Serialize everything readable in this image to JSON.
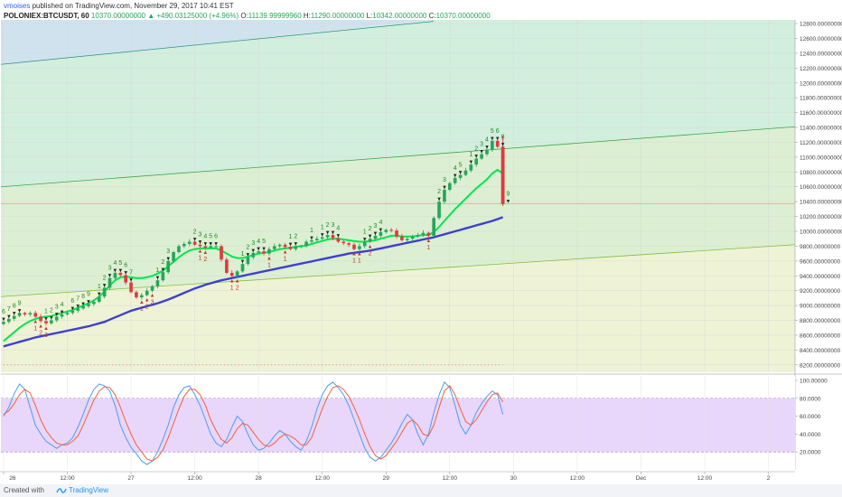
{
  "header": {
    "user": "vmoises",
    "published_text": "published on TradingView.com, November 29, 2017 10:41 EST",
    "symbol": "POLONIEX:BTCUSDT, 60",
    "last_price": "10370.00000000",
    "change": "▲ +490.03125000 (+4.96%)",
    "o_label": "O:",
    "o_value": "11139.99999960",
    "h_label": "H:",
    "h_value": "11290.00000000",
    "l_label": "L:",
    "l_value": "10342.00000000",
    "c_label": "C:",
    "c_value": "10370.00000000"
  },
  "footer": {
    "created_with": "Created with",
    "brand": "TradingView"
  },
  "colors": {
    "bull": "#26a65b",
    "bear": "#e03a3e",
    "fast_ma": "#00e64d",
    "slow_ma": "#3f3fd1",
    "stoch_k": "#4b9ef5",
    "stoch_d": "#f3603c",
    "band_fill": "#e2c8fa",
    "label_green": "#1b8a2a",
    "label_red": "#c0392b"
  },
  "chart_data": [
    {
      "type": "candlestick",
      "price_axis": {
        "ylim": [
          8100,
          12850
        ],
        "ticks": [
          "12800.00000000",
          "12600.00000000",
          "12400.00000000",
          "12200.00000000",
          "12000.00000000",
          "11800.00000000",
          "11600.00000000",
          "11400.00000000",
          "11200.00000000",
          "11000.00000000",
          "10800.00000000",
          "10600.00000000",
          "10400.00000000",
          "10200.00000000",
          "10000.00000000",
          "9800.00000000",
          "9600.00000000",
          "9400.00000000",
          "9200.00000000",
          "9000.00000000",
          "8800.00000000",
          "8600.00000000",
          "8400.00000000",
          "8200.00000000"
        ],
        "tick_values": [
          12800,
          12600,
          12400,
          12200,
          12000,
          11800,
          11600,
          11400,
          11200,
          11000,
          10800,
          10600,
          10400,
          10200,
          10000,
          9800,
          9600,
          9400,
          9200,
          9000,
          8800,
          8600,
          8400,
          8200
        ]
      },
      "time_axis": {
        "labels": [
          "26",
          "12:00",
          "27",
          "12:00",
          "28",
          "12:00",
          "29",
          "12:00",
          "30",
          "12:00",
          "Dec",
          "12:00",
          "2"
        ],
        "hours": [
          0,
          12,
          24,
          36,
          48,
          60,
          72,
          84,
          96,
          108,
          120,
          132,
          144
        ],
        "xlim_hours": [
          -0.5,
          149
        ]
      },
      "close_hourly": [
        8780,
        8820,
        8860,
        8900,
        8880,
        8900,
        8850,
        8790,
        8760,
        8800,
        8850,
        8880,
        8900,
        8930,
        8960,
        8990,
        9020,
        9050,
        9120,
        9240,
        9370,
        9440,
        9410,
        9310,
        9180,
        9110,
        9140,
        9200,
        9260,
        9340,
        9450,
        9600,
        9720,
        9800,
        9830,
        9860,
        9820,
        9800,
        9780,
        9800,
        9800,
        9620,
        9440,
        9400,
        9460,
        9560,
        9650,
        9710,
        9730,
        9700,
        9760,
        9800,
        9820,
        9790,
        9760,
        9800,
        9800,
        9860,
        9880,
        9900,
        9920,
        9950,
        9910,
        9860,
        9840,
        9820,
        9760,
        9800,
        9860,
        9900,
        9940,
        9990,
        10020,
        10010,
        9930,
        9880,
        9900,
        9930,
        9950,
        9980,
        9940,
        10180,
        10400,
        10560,
        10650,
        10720,
        10760,
        10820,
        10900,
        10980,
        11040,
        11100,
        11220,
        11140,
        10370
      ],
      "fast_ma": [
        8520,
        8580,
        8640,
        8700,
        8750,
        8790,
        8820,
        8840,
        8850,
        8860,
        8880,
        8900,
        8920,
        8940,
        8970,
        9000,
        9030,
        9070,
        9120,
        9190,
        9270,
        9340,
        9380,
        9390,
        9380,
        9370,
        9370,
        9380,
        9400,
        9430,
        9470,
        9530,
        9590,
        9650,
        9700,
        9740,
        9760,
        9770,
        9770,
        9770,
        9770,
        9740,
        9700,
        9660,
        9640,
        9640,
        9660,
        9680,
        9700,
        9710,
        9720,
        9740,
        9760,
        9770,
        9780,
        9790,
        9800,
        9810,
        9830,
        9850,
        9870,
        9890,
        9900,
        9900,
        9890,
        9880,
        9870,
        9860,
        9860,
        9870,
        9880,
        9900,
        9920,
        9940,
        9940,
        9930,
        9930,
        9930,
        9940,
        9950,
        9950,
        9990,
        10060,
        10140,
        10220,
        10300,
        10370,
        10440,
        10510,
        10580,
        10640,
        10700,
        10780,
        10830,
        10780
      ],
      "slow_ma": [
        8450,
        8470,
        8490,
        8510,
        8530,
        8550,
        8570,
        8585,
        8600,
        8615,
        8630,
        8645,
        8660,
        8675,
        8690,
        8705,
        8720,
        8740,
        8760,
        8780,
        8810,
        8840,
        8870,
        8900,
        8930,
        8950,
        8970,
        8990,
        9010,
        9030,
        9055,
        9080,
        9110,
        9140,
        9170,
        9200,
        9230,
        9255,
        9280,
        9300,
        9320,
        9340,
        9355,
        9370,
        9385,
        9400,
        9415,
        9430,
        9445,
        9460,
        9475,
        9490,
        9505,
        9520,
        9535,
        9550,
        9565,
        9580,
        9595,
        9610,
        9625,
        9640,
        9655,
        9670,
        9685,
        9700,
        9710,
        9720,
        9730,
        9740,
        9755,
        9770,
        9785,
        9800,
        9815,
        9830,
        9845,
        9860,
        9875,
        9890,
        9905,
        9920,
        9940,
        9960,
        9980,
        10000,
        10020,
        10040,
        10060,
        10080,
        10100,
        10120,
        10140,
        10165,
        10190
      ],
      "channel_lines": [
        {
          "color": "#2a8f8f",
          "points": [
            [
              -0.5,
              12250
            ],
            [
              81,
              12830
            ]
          ]
        },
        {
          "color": "#3aa84a",
          "points": [
            [
              -0.5,
              10600
            ],
            [
              149,
              11410
            ]
          ]
        },
        {
          "color": "#7fbf3f",
          "points": [
            [
              -0.5,
              9120
            ],
            [
              149,
              9820
            ]
          ]
        }
      ],
      "horizontal_line": {
        "value": 10370,
        "color": "#e08080"
      },
      "dotted_line": {
        "value": 8200,
        "color": "#e08080"
      },
      "td_labels_above": [
        {
          "h": 0,
          "text": "6"
        },
        {
          "h": 1,
          "text": "7"
        },
        {
          "h": 2,
          "text": "8"
        },
        {
          "h": 3,
          "text": "9"
        },
        {
          "h": 8,
          "text": "1"
        },
        {
          "h": 9,
          "text": "2"
        },
        {
          "h": 10,
          "text": "3"
        },
        {
          "h": 11,
          "text": "4"
        },
        {
          "h": 13,
          "text": "6"
        },
        {
          "h": 14,
          "text": "7"
        },
        {
          "h": 15,
          "text": "8"
        },
        {
          "h": 16,
          "text": "9"
        },
        {
          "h": 18,
          "text": "1"
        },
        {
          "h": 19,
          "text": "2"
        },
        {
          "h": 20,
          "text": "3"
        },
        {
          "h": 21,
          "text": "4"
        },
        {
          "h": 22,
          "text": "5"
        },
        {
          "h": 23,
          "text": "6"
        },
        {
          "h": 24,
          "text": "7"
        },
        {
          "h": 29,
          "text": "1"
        },
        {
          "h": 30,
          "text": "2"
        },
        {
          "h": 31,
          "text": "3"
        },
        {
          "h": 36,
          "text": "2"
        },
        {
          "h": 37,
          "text": "3"
        },
        {
          "h": 38,
          "text": "4"
        },
        {
          "h": 39,
          "text": "5"
        },
        {
          "h": 40,
          "text": "6"
        },
        {
          "h": 45,
          "text": "1"
        },
        {
          "h": 46,
          "text": "2"
        },
        {
          "h": 47,
          "text": "3"
        },
        {
          "h": 48,
          "text": "4"
        },
        {
          "h": 49,
          "text": "5"
        },
        {
          "h": 54,
          "text": "1"
        },
        {
          "h": 55,
          "text": "2"
        },
        {
          "h": 58,
          "text": "1"
        },
        {
          "h": 60,
          "text": "1"
        },
        {
          "h": 61,
          "text": "2"
        },
        {
          "h": 62,
          "text": "3"
        },
        {
          "h": 63,
          "text": "4"
        },
        {
          "h": 68,
          "text": "1"
        },
        {
          "h": 69,
          "text": "2"
        },
        {
          "h": 70,
          "text": "3"
        },
        {
          "h": 71,
          "text": "4"
        },
        {
          "h": 82,
          "text": "2"
        },
        {
          "h": 83,
          "text": "3"
        },
        {
          "h": 85,
          "text": "4"
        },
        {
          "h": 86,
          "text": "5"
        },
        {
          "h": 88,
          "text": "1"
        },
        {
          "h": 89,
          "text": "2"
        },
        {
          "h": 90,
          "text": "3"
        },
        {
          "h": 91,
          "text": "4"
        },
        {
          "h": 92,
          "text": "5"
        },
        {
          "h": 93,
          "text": "6"
        },
        {
          "h": 94,
          "text": "8"
        },
        {
          "h": 95,
          "text": "9"
        }
      ],
      "td_labels_below": [
        {
          "h": 6,
          "text": "1"
        },
        {
          "h": 7,
          "text": "2"
        },
        {
          "h": 8,
          "text": "3"
        },
        {
          "h": 26,
          "text": "1"
        },
        {
          "h": 27,
          "text": "2"
        },
        {
          "h": 28,
          "text": "3"
        },
        {
          "h": 37,
          "text": "1"
        },
        {
          "h": 38,
          "text": "2"
        },
        {
          "h": 43,
          "text": "1"
        },
        {
          "h": 44,
          "text": "2"
        },
        {
          "h": 50,
          "text": "1"
        },
        {
          "h": 53,
          "text": "1"
        },
        {
          "h": 66,
          "text": "1"
        },
        {
          "h": 67,
          "text": "1"
        },
        {
          "h": 69,
          "text": "2"
        },
        {
          "h": 80,
          "text": "1"
        }
      ]
    },
    {
      "type": "line",
      "name": "stochastic",
      "ylim": [
        0,
        105
      ],
      "band": [
        20,
        80
      ],
      "y_ticks": [
        "100.00000",
        "80.0000",
        "60.0000",
        "40.0000",
        "20.0000"
      ],
      "y_tick_values": [
        100,
        80,
        60,
        40,
        20
      ],
      "k": [
        60,
        70,
        85,
        96,
        90,
        70,
        50,
        40,
        32,
        28,
        24,
        28,
        30,
        36,
        48,
        62,
        78,
        90,
        96,
        94,
        88,
        72,
        50,
        36,
        25,
        18,
        10,
        6,
        10,
        20,
        34,
        50,
        70,
        84,
        92,
        94,
        84,
        72,
        56,
        40,
        30,
        26,
        34,
        48,
        60,
        54,
        40,
        28,
        22,
        24,
        30,
        38,
        44,
        40,
        32,
        26,
        22,
        32,
        48,
        68,
        84,
        94,
        98,
        92,
        84,
        72,
        56,
        40,
        24,
        14,
        10,
        14,
        22,
        30,
        40,
        52,
        62,
        56,
        40,
        28,
        40,
        64,
        84,
        98,
        92,
        72,
        50,
        40,
        50,
        64,
        74,
        82,
        88,
        84,
        62
      ],
      "d": [
        62,
        66,
        74,
        84,
        90,
        86,
        72,
        56,
        44,
        36,
        30,
        28,
        28,
        32,
        38,
        50,
        64,
        78,
        88,
        93,
        92,
        84,
        70,
        54,
        40,
        28,
        20,
        12,
        10,
        14,
        22,
        36,
        52,
        68,
        82,
        90,
        90,
        84,
        72,
        56,
        44,
        34,
        30,
        36,
        46,
        52,
        50,
        42,
        34,
        28,
        26,
        30,
        36,
        40,
        38,
        34,
        28,
        28,
        36,
        52,
        68,
        82,
        92,
        94,
        90,
        82,
        70,
        56,
        40,
        26,
        16,
        12,
        16,
        24,
        32,
        42,
        52,
        56,
        50,
        40,
        38,
        50,
        70,
        88,
        94,
        84,
        68,
        54,
        50,
        56,
        66,
        76,
        84,
        86,
        76
      ]
    }
  ]
}
